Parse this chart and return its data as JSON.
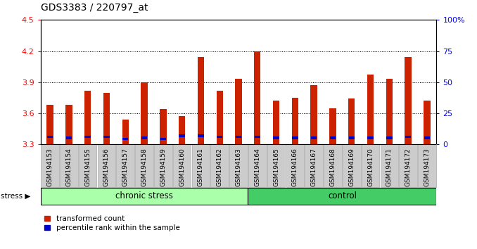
{
  "title": "GDS3383 / 220797_at",
  "samples": [
    "GSM194153",
    "GSM194154",
    "GSM194155",
    "GSM194156",
    "GSM194157",
    "GSM194158",
    "GSM194159",
    "GSM194160",
    "GSM194161",
    "GSM194162",
    "GSM194163",
    "GSM194164",
    "GSM194165",
    "GSM194166",
    "GSM194167",
    "GSM194168",
    "GSM194169",
    "GSM194170",
    "GSM194171",
    "GSM194172",
    "GSM194173"
  ],
  "transformed_counts": [
    3.68,
    3.68,
    3.82,
    3.8,
    3.54,
    3.9,
    3.64,
    3.57,
    4.14,
    3.82,
    3.93,
    4.2,
    3.72,
    3.75,
    3.87,
    3.65,
    3.74,
    3.97,
    3.93,
    4.14,
    3.72
  ],
  "blue_bottoms": [
    3.36,
    3.35,
    3.36,
    3.36,
    3.34,
    3.35,
    3.34,
    3.37,
    3.37,
    3.36,
    3.36,
    3.36,
    3.35,
    3.35,
    3.35,
    3.35,
    3.35,
    3.35,
    3.35,
    3.36,
    3.35
  ],
  "blue_heights": [
    0.025,
    0.025,
    0.025,
    0.025,
    0.025,
    0.025,
    0.025,
    0.025,
    0.025,
    0.025,
    0.025,
    0.025,
    0.025,
    0.025,
    0.025,
    0.025,
    0.025,
    0.025,
    0.025,
    0.025,
    0.025
  ],
  "bar_color": "#cc2200",
  "percentile_color": "#0000cc",
  "ymin": 3.3,
  "ymax": 4.5,
  "yticks": [
    3.3,
    3.6,
    3.9,
    4.2,
    4.5
  ],
  "right_yticks": [
    0,
    25,
    50,
    75,
    100
  ],
  "chronic_stress_color": "#aaffaa",
  "control_color": "#44cc66",
  "stress_label": "stress",
  "chronic_label": "chronic stress",
  "control_label": "control",
  "legend_transformed": "transformed count",
  "legend_percentile": "percentile rank within the sample",
  "n_chronic": 11,
  "n_total": 21,
  "plot_bg": "#ffffff",
  "tick_label_bg": "#cccccc"
}
